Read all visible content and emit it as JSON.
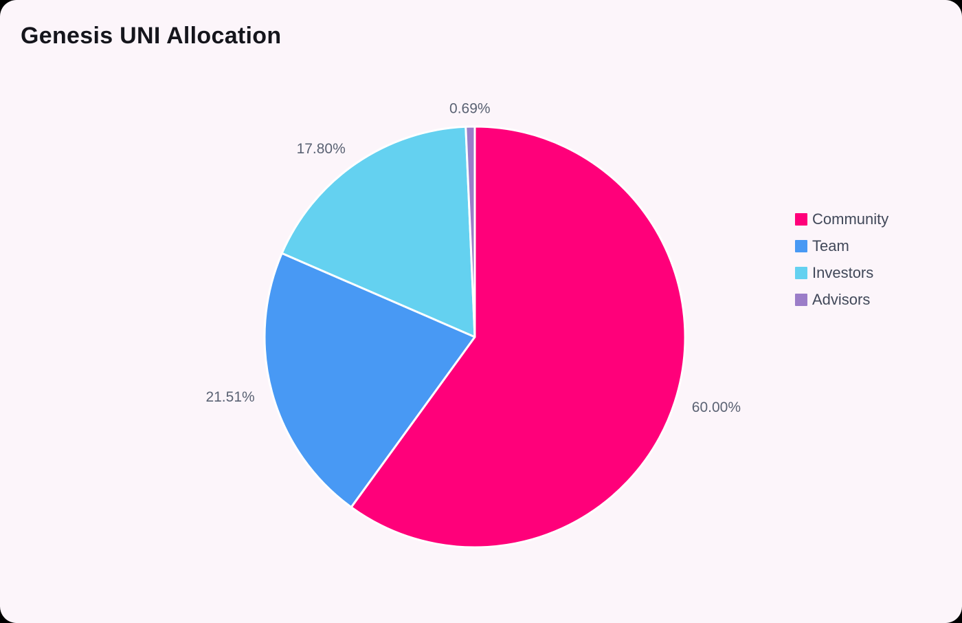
{
  "title": "Genesis UNI Allocation",
  "theme": {
    "background": "#FCF5FA",
    "page_corner_color": "#000000",
    "title_color": "#15151C",
    "label_color": "#5A6273",
    "legend_text_color": "#414859",
    "slice_border_color": "#FFFFFF"
  },
  "chart_data": {
    "type": "pie",
    "title": "Genesis UNI Allocation",
    "legend_position": "right",
    "start_angle": "12-o'clock",
    "direction": "clockwise",
    "slices": [
      {
        "name": "Community",
        "value": 60.0,
        "display": "60.00%",
        "color": "#FF007A"
      },
      {
        "name": "Team",
        "value": 21.51,
        "display": "21.51%",
        "color": "#4899F4"
      },
      {
        "name": "Investors",
        "value": 17.8,
        "display": "17.80%",
        "color": "#64D1F0"
      },
      {
        "name": "Advisors",
        "value": 0.69,
        "display": "0.69%",
        "color": "#9B7DC8"
      }
    ]
  }
}
